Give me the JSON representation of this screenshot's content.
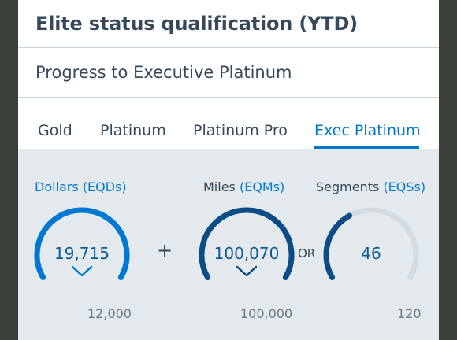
{
  "header": {
    "title": "Elite status qualification (YTD)"
  },
  "subheader": {
    "title": "Progress to Executive Platinum"
  },
  "tabs": [
    {
      "label": "Gold",
      "active": false
    },
    {
      "label": "Platinum",
      "active": false
    },
    {
      "label": "Platinum Pro",
      "active": false
    },
    {
      "label": "Exec Platinum",
      "active": true
    }
  ],
  "metrics": [
    {
      "name_main": "Dollars",
      "name_unit": "(EQDs)",
      "value": "19,715",
      "target": "12,000",
      "progress_fraction": 1.0,
      "achieved": true,
      "color": "#0078d2"
    },
    {
      "name_main": "Miles",
      "name_unit": "(EQMs)",
      "value": "100,070",
      "target": "100,000",
      "progress_fraction": 1.0,
      "achieved": true,
      "color": "#0b4c84"
    },
    {
      "name_main": "Segments",
      "name_unit": "(EQSs)",
      "value": "46",
      "target": "120",
      "progress_fraction": 0.38,
      "achieved": false,
      "color": "#0b4c84"
    }
  ],
  "operators": {
    "plus": "+",
    "or": "OR"
  },
  "colors": {
    "accent": "#0078d2",
    "dark_accent": "#0b4c84",
    "track": "#d3dce3",
    "text": "#36495a",
    "panel": "#e4e9ee"
  },
  "icons": {
    "check": "check-icon"
  }
}
